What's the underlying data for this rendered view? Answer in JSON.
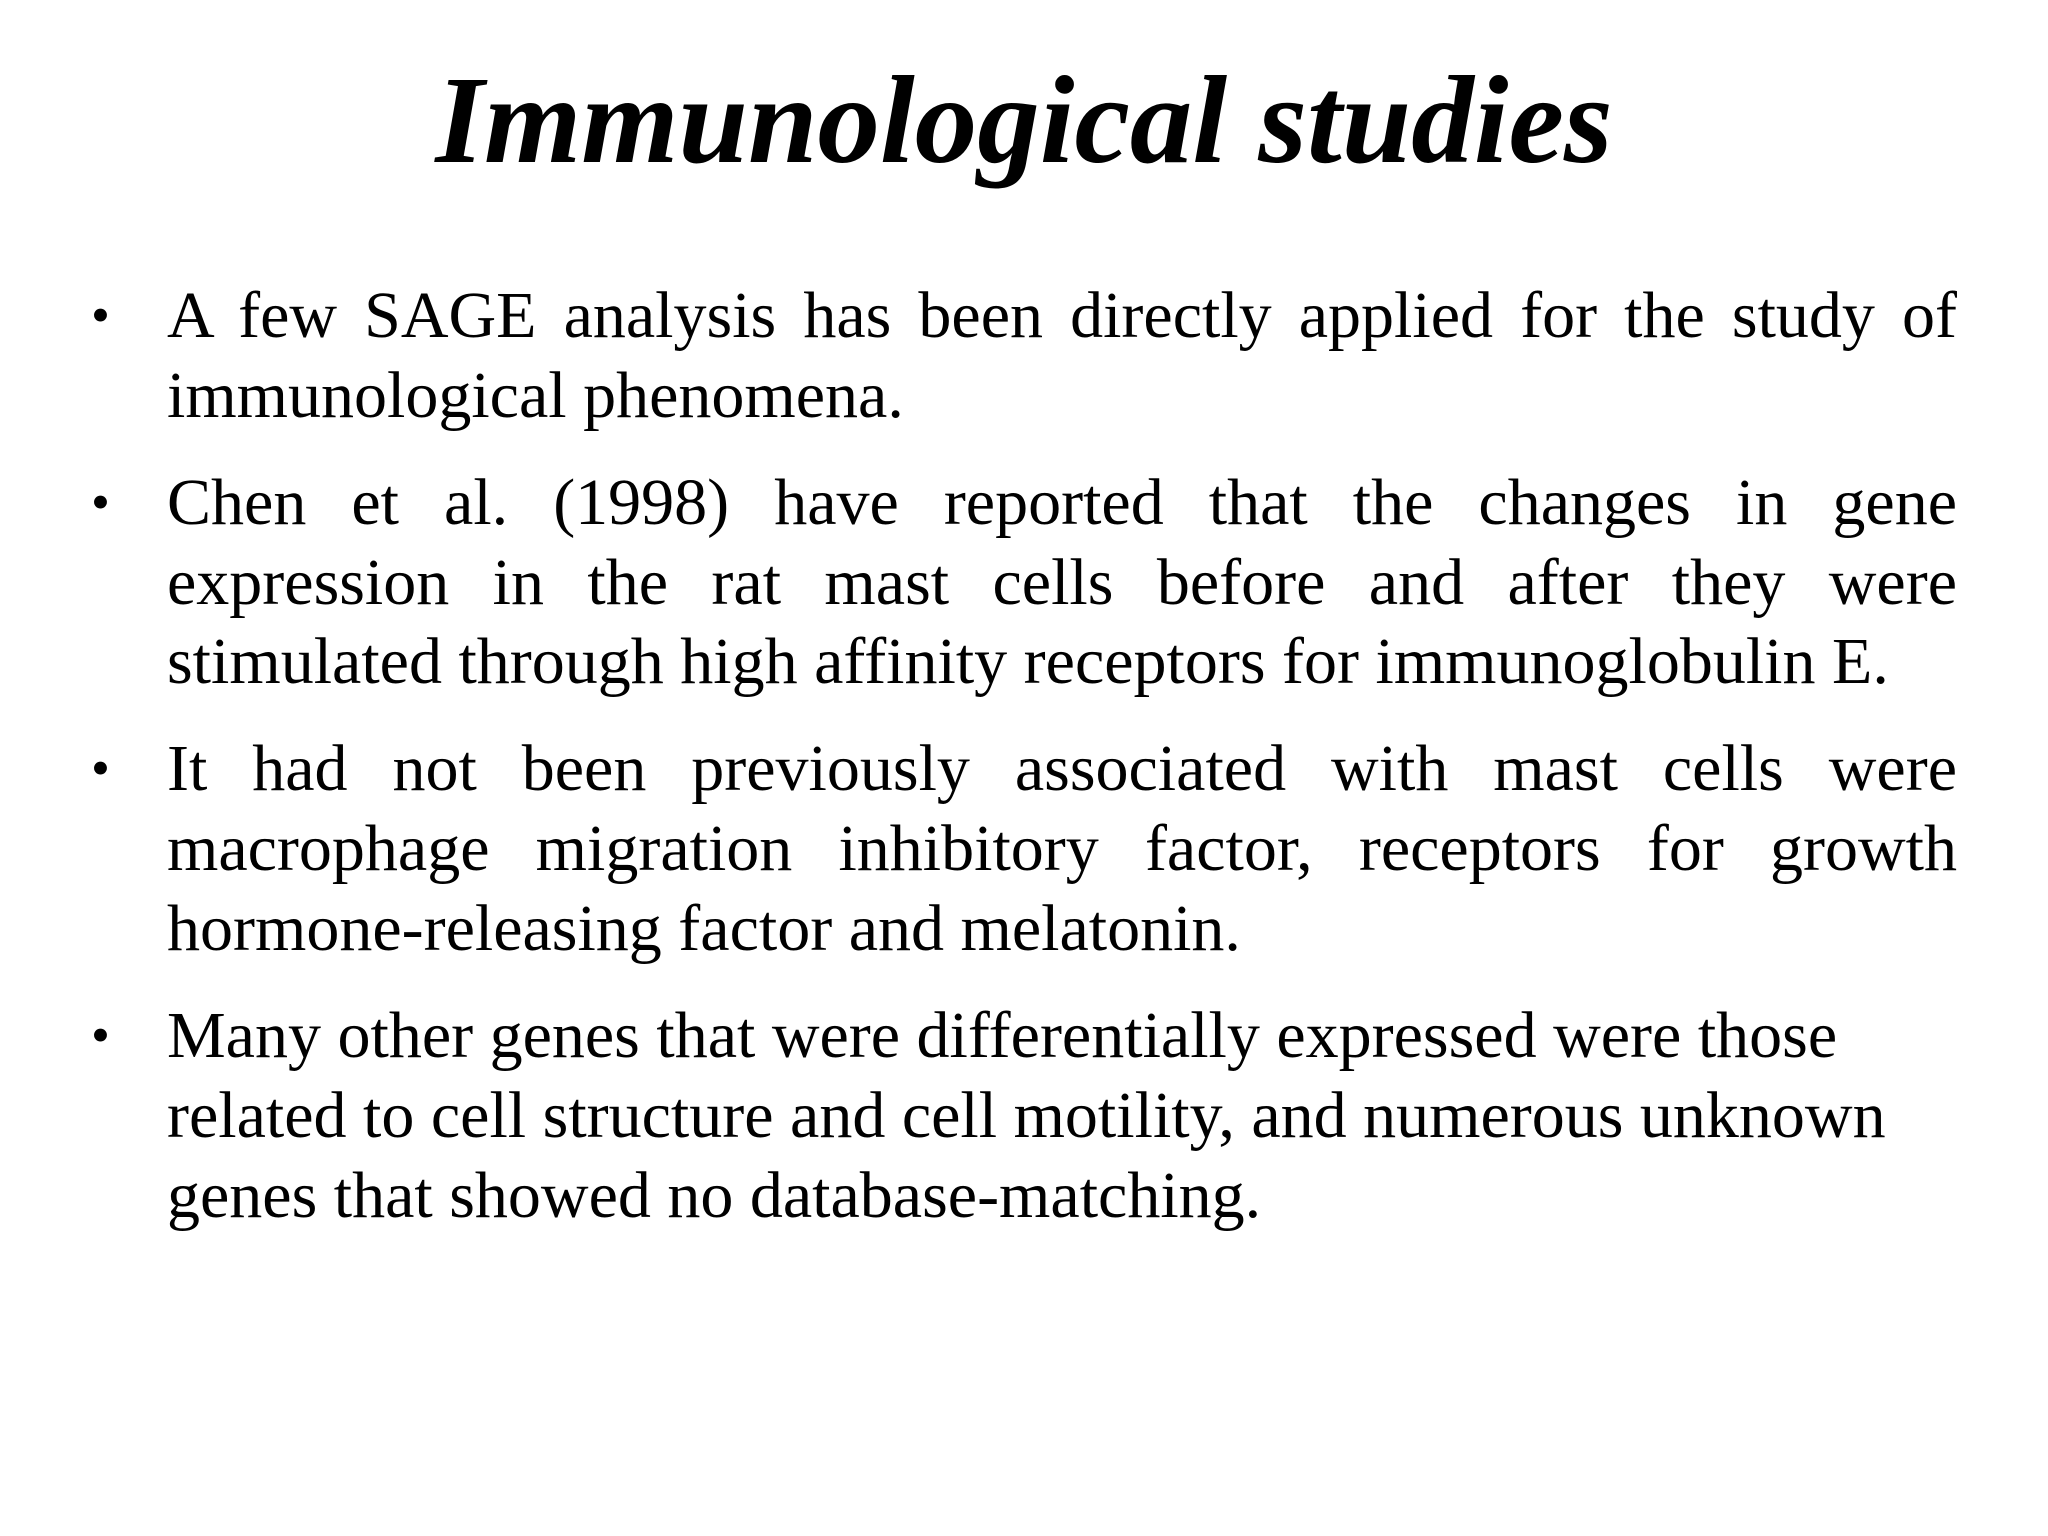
{
  "slide": {
    "title": "Immunological studies",
    "bullet_marker": "•",
    "bullets": [
      {
        "text": "A few SAGE analysis has been directly applied for the study of immunological phenomena."
      },
      {
        "text": "Chen et al. (1998) have reported that the changes in gene expression in the rat mast cells before and after they were stimulated through high affinity receptors for immunoglobulin E."
      },
      {
        "text": "It had not been previously associated with mast cells were macrophage migration inhibitory factor, receptors for growth hormone-releasing factor and melatonin."
      },
      {
        "text": "Many other genes that were differentially expressed were those related to cell structure and cell motility, and numerous unknown genes that showed no database-matching."
      }
    ],
    "colors": {
      "background": "#ffffff",
      "text": "#000000"
    }
  }
}
